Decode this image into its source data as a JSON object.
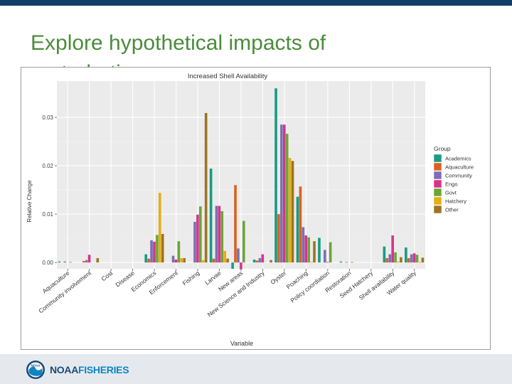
{
  "slide": {
    "title": "Explore hypothetical impacts of perturbations"
  },
  "footer": {
    "logo_word1": "NOAA",
    "logo_word2": "FISHERIES",
    "emblem_text": "NOAA"
  },
  "chart_data": {
    "type": "bar",
    "title": "Increased Shell Availability",
    "xlabel": "Variable",
    "ylabel": "Relative Change",
    "ylim": [
      -0.0013,
      0.0375
    ],
    "yticks": [
      0.0,
      0.01,
      0.02,
      0.03
    ],
    "ytick_labels": [
      "0.00",
      "0.01",
      "0.02",
      "0.03"
    ],
    "grid": true,
    "legend_title": "Group",
    "legend_position": "right",
    "categories": [
      "Aquaculture",
      "Community involvement",
      "Cost",
      "Disease",
      "Economics",
      "Enforcement",
      "Fishing",
      "Larvae",
      "New areas",
      "New Science and Industry",
      "Oyster",
      "Poaching",
      "Policy coordiation",
      "Restoration",
      "Seed Hatchery",
      "Shell availability",
      "Water quality"
    ],
    "series": [
      {
        "name": "Academics",
        "color": "#1a9a85",
        "values": [
          0.0002,
          0.0,
          0.0,
          0.0,
          0.0017,
          0.0,
          0.0,
          0.0194,
          -0.0013,
          0.0006,
          0.036,
          0.0136,
          0.0051,
          0.0002,
          0.0,
          0.0033,
          0.0031
        ]
      },
      {
        "name": "Aquaculture",
        "color": "#d8621f",
        "values": [
          0.0,
          0.0003,
          0.0,
          0.0,
          0.0008,
          0.0,
          0.0,
          0.0008,
          0.016,
          0.0004,
          0.01,
          0.0157,
          0.0,
          0.0,
          0.0,
          0.0009,
          0.0009
        ]
      },
      {
        "name": "Community",
        "color": "#7d6fb3",
        "values": [
          0.0002,
          0.0005,
          0.0,
          0.0,
          0.0046,
          0.0014,
          0.0084,
          0.0117,
          0.0029,
          0.0009,
          0.0285,
          0.0073,
          0.0026,
          0.0001,
          0.0,
          0.0017,
          0.0017
        ]
      },
      {
        "name": "Engo",
        "color": "#d8338c",
        "values": [
          0.0,
          0.0016,
          0.0,
          0.0,
          0.0043,
          0.0006,
          0.0099,
          0.0117,
          -0.0014,
          0.0017,
          0.0285,
          0.0056,
          0.0001,
          0.0,
          0.0,
          0.0056,
          0.0019
        ]
      },
      {
        "name": "Govt",
        "color": "#6aa637",
        "values": [
          0.0001,
          0.0,
          0.0,
          0.0,
          0.0057,
          0.0044,
          0.0116,
          0.0106,
          0.0086,
          0.0,
          0.0266,
          0.0052,
          0.0042,
          0.0001,
          0.0,
          0.0021,
          0.0016
        ]
      },
      {
        "name": "Hatchery",
        "color": "#e5ad17",
        "values": [
          0.0,
          0.0,
          0.0,
          0.0,
          0.0144,
          0.0009,
          0.0005,
          0.0024,
          0.0,
          0.0,
          0.0216,
          0.0001,
          0.0,
          0.0,
          0.0,
          0.0002,
          0.0001
        ]
      },
      {
        "name": "Other",
        "color": "#9e7422",
        "values": [
          0.0,
          0.0009,
          0.0,
          0.0,
          0.0059,
          0.0009,
          0.0309,
          0.0008,
          0.0,
          0.0005,
          0.021,
          0.0044,
          0.0,
          0.0,
          0.0,
          0.0011,
          0.001
        ]
      }
    ]
  }
}
